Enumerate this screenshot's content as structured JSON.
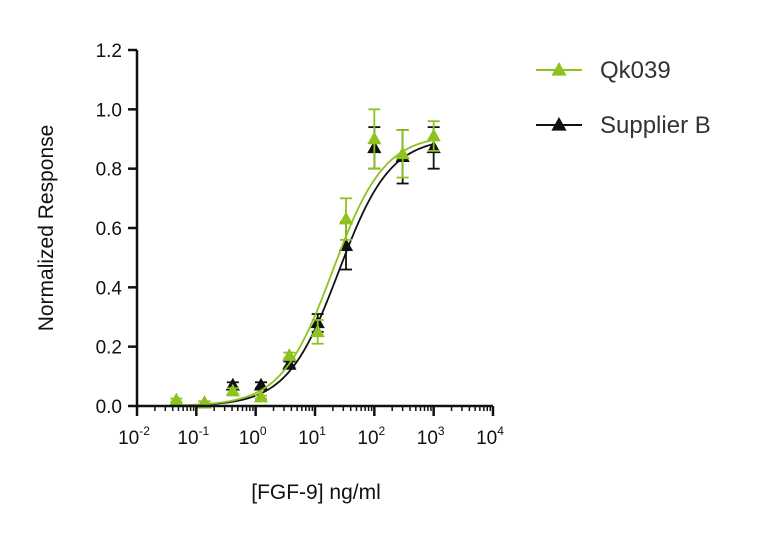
{
  "chart_data": {
    "type": "scatter",
    "xscale": "log",
    "xlim": [
      0.01,
      10000
    ],
    "ylim": [
      0,
      1.2
    ],
    "xticks": [
      {
        "base": "10",
        "exp": "-2"
      },
      {
        "base": "10",
        "exp": "-1"
      },
      {
        "base": "10",
        "exp": "0"
      },
      {
        "base": "10",
        "exp": "1"
      },
      {
        "base": "10",
        "exp": "2"
      },
      {
        "base": "10",
        "exp": "3"
      },
      {
        "base": "10",
        "exp": "4"
      }
    ],
    "yticks": [
      "0.0",
      "0.2",
      "0.4",
      "0.6",
      "0.8",
      "1.0",
      "1.2"
    ],
    "xlabel": "[FGF-9] ng/ml",
    "ylabel": "Normalized Response",
    "legend_position": "top-right",
    "series": [
      {
        "name": "Qk039",
        "color": "#8dc21f",
        "points": [
          {
            "x": 0.046,
            "y": 0.02,
            "err": 0.005
          },
          {
            "x": 0.137,
            "y": 0.01,
            "err": 0.005
          },
          {
            "x": 0.412,
            "y": 0.05,
            "err": 0.01
          },
          {
            "x": 1.23,
            "y": 0.03,
            "err": 0.005
          },
          {
            "x": 3.7,
            "y": 0.17,
            "err": 0.01
          },
          {
            "x": 11.1,
            "y": 0.25,
            "err": 0.04
          },
          {
            "x": 33.3,
            "y": 0.63,
            "err": 0.07
          },
          {
            "x": 100,
            "y": 0.9,
            "err": 0.1
          },
          {
            "x": 300,
            "y": 0.85,
            "err": 0.08
          },
          {
            "x": 1000,
            "y": 0.91,
            "err": 0.05
          }
        ],
        "fit": {
          "bottom": 0.0,
          "top": 0.915,
          "ec50": 20,
          "hill": 1.0
        }
      },
      {
        "name": "Supplier B",
        "color": "#111111",
        "points": [
          {
            "x": 0.137,
            "y": 0.01,
            "err": 0.005
          },
          {
            "x": 0.412,
            "y": 0.07,
            "err": 0.01
          },
          {
            "x": 1.23,
            "y": 0.07,
            "err": 0.01
          },
          {
            "x": 3.7,
            "y": 0.14,
            "err": 0.01
          },
          {
            "x": 11.1,
            "y": 0.28,
            "err": 0.03
          },
          {
            "x": 33.3,
            "y": 0.54,
            "err": 0.08
          },
          {
            "x": 100,
            "y": 0.87,
            "err": 0.07
          },
          {
            "x": 300,
            "y": 0.84,
            "err": 0.09
          },
          {
            "x": 1000,
            "y": 0.87,
            "err": 0.07
          }
        ],
        "fit": {
          "bottom": 0.0,
          "top": 0.905,
          "ec50": 25,
          "hill": 1.0
        }
      }
    ]
  }
}
